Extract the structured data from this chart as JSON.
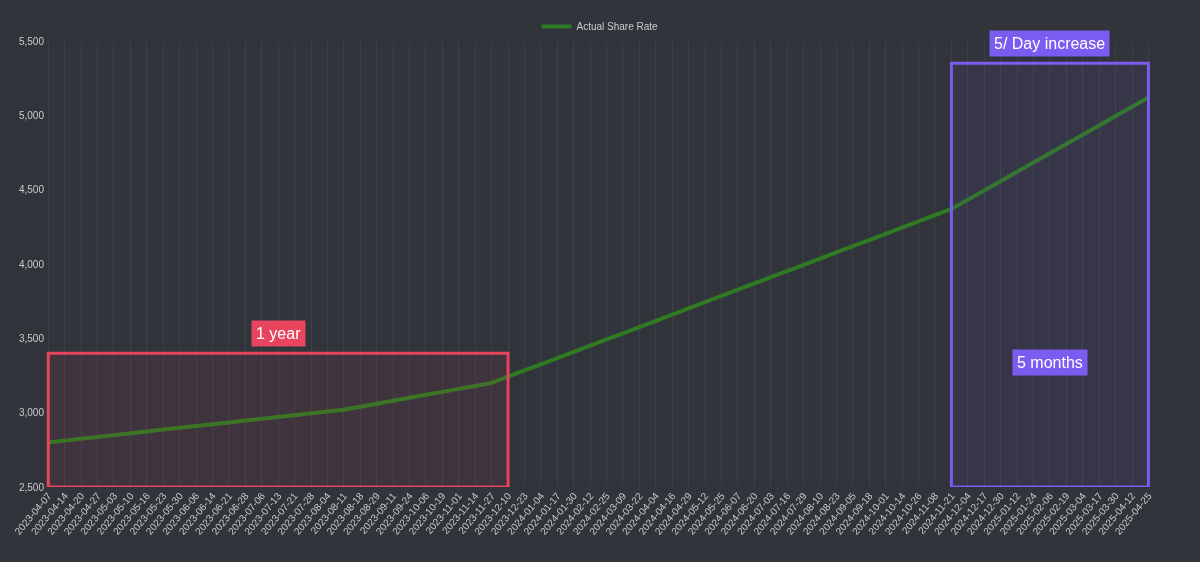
{
  "chart_data": {
    "type": "line",
    "categories": [
      "2023-04-07",
      "2023-04-14",
      "2023-04-20",
      "2023-04-27",
      "2023-05-03",
      "2023-05-10",
      "2023-05-16",
      "2023-05-23",
      "2023-05-30",
      "2023-06-06",
      "2023-06-14",
      "2023-06-21",
      "2023-06-28",
      "2023-07-06",
      "2023-07-13",
      "2023-07-21",
      "2023-07-28",
      "2023-08-04",
      "2023-08-11",
      "2023-08-18",
      "2023-08-29",
      "2023-09-11",
      "2023-09-24",
      "2023-10-06",
      "2023-10-19",
      "2023-11-01",
      "2023-11-14",
      "2023-11-27",
      "2023-12-10",
      "2023-12-23",
      "2024-01-04",
      "2024-01-17",
      "2024-01-30",
      "2024-02-12",
      "2024-02-25",
      "2024-03-09",
      "2024-03-22",
      "2024-04-04",
      "2024-04-16",
      "2024-04-29",
      "2024-05-12",
      "2024-05-25",
      "2024-06-07",
      "2024-06-20",
      "2024-07-03",
      "2024-07-16",
      "2024-07-29",
      "2024-08-10",
      "2024-08-23",
      "2024-09-05",
      "2024-09-18",
      "2024-10-01",
      "2024-10-14",
      "2024-10-26",
      "2024-11-08",
      "2024-11-21",
      "2024-12-04",
      "2024-12-17",
      "2024-12-30",
      "2025-01-12",
      "2025-01-24",
      "2025-02-06",
      "2025-02-19",
      "2025-03-04",
      "2025-03-17",
      "2025-03-30",
      "2025-04-12",
      "2025-04-25"
    ],
    "series": [
      {
        "name": "Actual Share Rate",
        "color": "#2f7a22",
        "values": [
          2800,
          2812,
          2824,
          2837,
          2849,
          2861,
          2873,
          2886,
          2898,
          2910,
          2922,
          2934,
          2947,
          2959,
          2971,
          2983,
          2996,
          3008,
          3020,
          3040,
          3060,
          3080,
          3100,
          3120,
          3140,
          3160,
          3180,
          3200,
          3242,
          3284,
          3325,
          3367,
          3409,
          3451,
          3493,
          3534,
          3576,
          3618,
          3660,
          3702,
          3743,
          3785,
          3827,
          3869,
          3911,
          3952,
          3994,
          4036,
          4078,
          4120,
          4161,
          4203,
          4245,
          4287,
          4328,
          4370,
          4432,
          4495,
          4557,
          4620,
          4682,
          4745,
          4807,
          4870,
          4932,
          4995,
          5057,
          5120
        ]
      }
    ],
    "ylim": [
      2500,
      5500
    ],
    "yticks": [
      {
        "value": 2500,
        "label": "2,500"
      },
      {
        "value": 3000,
        "label": "3,000"
      },
      {
        "value": 3500,
        "label": "3,500"
      },
      {
        "value": 4000,
        "label": "4,000"
      },
      {
        "value": 4500,
        "label": "4,500"
      },
      {
        "value": 5000,
        "label": "5,000"
      },
      {
        "value": 5500,
        "label": "5,500"
      }
    ],
    "bands": [
      {
        "axis": "x",
        "from": "2023-04-07",
        "to": "2023-12-10",
        "label": "1 year",
        "color": "#e8445e"
      },
      {
        "axis": "x",
        "from": "2024-11-21",
        "to": "2025-04-25",
        "label": "5/ Day increase",
        "color": "#7b5cf0"
      }
    ],
    "annotations": [
      "5 months"
    ],
    "grid": "x",
    "legend": "top",
    "marker": "none",
    "line_style": "solid"
  }
}
